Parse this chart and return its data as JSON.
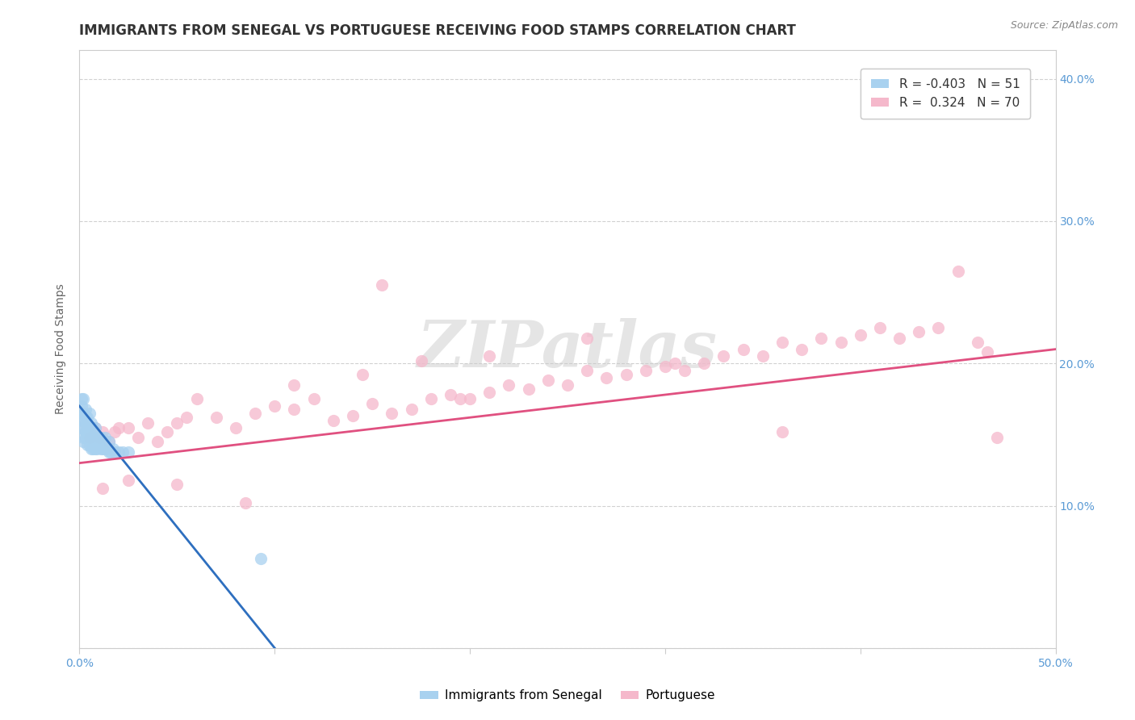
{
  "title": "IMMIGRANTS FROM SENEGAL VS PORTUGUESE RECEIVING FOOD STAMPS CORRELATION CHART",
  "source": "Source: ZipAtlas.com",
  "ylabel": "Receiving Food Stamps",
  "xlim": [
    0.0,
    0.5
  ],
  "ylim": [
    0.0,
    0.42
  ],
  "xticks": [
    0.0,
    0.1,
    0.2,
    0.3,
    0.4,
    0.5
  ],
  "yticks": [
    0.0,
    0.1,
    0.2,
    0.3,
    0.4
  ],
  "xtick_labels": [
    "0.0%",
    "",
    "",
    "",
    "",
    "50.0%"
  ],
  "ytick_labels_right": [
    "",
    "10.0%",
    "20.0%",
    "30.0%",
    "40.0%"
  ],
  "senegal_R": -0.403,
  "senegal_N": 51,
  "portuguese_R": 0.324,
  "portuguese_N": 70,
  "senegal_color": "#A8D1EF",
  "portuguese_color": "#F5B8CB",
  "senegal_line_color": "#2E6FBF",
  "portuguese_line_color": "#E05080",
  "background_color": "#FFFFFF",
  "watermark_text": "ZIPatlas",
  "watermark_color": "#DDDDDD",
  "grid_color": "#CCCCCC",
  "tick_color": "#5B9BD5",
  "title_fontsize": 12,
  "axis_label_fontsize": 10,
  "tick_fontsize": 10,
  "legend_fontsize": 11,
  "senegal_x": [
    0.001,
    0.001,
    0.001,
    0.001,
    0.002,
    0.002,
    0.002,
    0.002,
    0.002,
    0.002,
    0.003,
    0.003,
    0.003,
    0.003,
    0.003,
    0.004,
    0.004,
    0.004,
    0.004,
    0.005,
    0.005,
    0.005,
    0.005,
    0.006,
    0.006,
    0.006,
    0.007,
    0.007,
    0.007,
    0.008,
    0.008,
    0.008,
    0.009,
    0.009,
    0.01,
    0.01,
    0.011,
    0.011,
    0.012,
    0.013,
    0.013,
    0.014,
    0.015,
    0.015,
    0.016,
    0.017,
    0.018,
    0.02,
    0.022,
    0.025,
    0.093
  ],
  "senegal_y": [
    0.155,
    0.162,
    0.17,
    0.175,
    0.145,
    0.148,
    0.155,
    0.16,
    0.165,
    0.175,
    0.148,
    0.152,
    0.158,
    0.163,
    0.168,
    0.143,
    0.15,
    0.155,
    0.162,
    0.142,
    0.148,
    0.155,
    0.165,
    0.14,
    0.148,
    0.158,
    0.14,
    0.148,
    0.155,
    0.14,
    0.148,
    0.155,
    0.14,
    0.148,
    0.142,
    0.148,
    0.14,
    0.148,
    0.14,
    0.14,
    0.148,
    0.14,
    0.138,
    0.145,
    0.138,
    0.14,
    0.138,
    0.138,
    0.138,
    0.138,
    0.063
  ],
  "portuguese_x": [
    0.005,
    0.008,
    0.01,
    0.012,
    0.015,
    0.018,
    0.02,
    0.025,
    0.03,
    0.035,
    0.04,
    0.045,
    0.05,
    0.055,
    0.06,
    0.07,
    0.08,
    0.09,
    0.1,
    0.11,
    0.12,
    0.13,
    0.14,
    0.15,
    0.155,
    0.16,
    0.17,
    0.18,
    0.19,
    0.195,
    0.2,
    0.21,
    0.22,
    0.23,
    0.24,
    0.25,
    0.26,
    0.27,
    0.28,
    0.29,
    0.3,
    0.305,
    0.31,
    0.32,
    0.33,
    0.34,
    0.35,
    0.36,
    0.37,
    0.38,
    0.39,
    0.4,
    0.41,
    0.42,
    0.43,
    0.44,
    0.45,
    0.46,
    0.465,
    0.47,
    0.012,
    0.025,
    0.05,
    0.085,
    0.11,
    0.145,
    0.175,
    0.21,
    0.26,
    0.36
  ],
  "portuguese_y": [
    0.148,
    0.155,
    0.148,
    0.152,
    0.145,
    0.152,
    0.155,
    0.155,
    0.148,
    0.158,
    0.145,
    0.152,
    0.158,
    0.162,
    0.175,
    0.162,
    0.155,
    0.165,
    0.17,
    0.168,
    0.175,
    0.16,
    0.163,
    0.172,
    0.255,
    0.165,
    0.168,
    0.175,
    0.178,
    0.175,
    0.175,
    0.18,
    0.185,
    0.182,
    0.188,
    0.185,
    0.195,
    0.19,
    0.192,
    0.195,
    0.198,
    0.2,
    0.195,
    0.2,
    0.205,
    0.21,
    0.205,
    0.215,
    0.21,
    0.218,
    0.215,
    0.22,
    0.225,
    0.218,
    0.222,
    0.225,
    0.265,
    0.215,
    0.208,
    0.148,
    0.112,
    0.118,
    0.115,
    0.102,
    0.185,
    0.192,
    0.202,
    0.205,
    0.218,
    0.152
  ],
  "senegal_trend_x": [
    0.0,
    0.1
  ],
  "senegal_trend_y": [
    0.17,
    0.0
  ],
  "portuguese_trend_x": [
    0.0,
    0.5
  ],
  "portuguese_trend_y": [
    0.13,
    0.21
  ]
}
